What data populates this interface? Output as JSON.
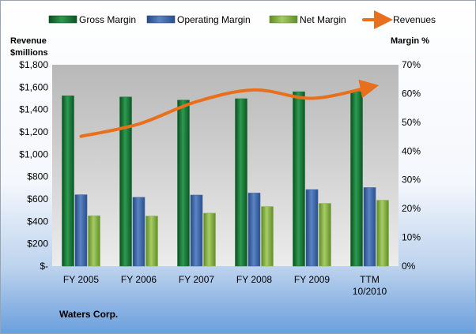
{
  "colors": {
    "gross": "#1f7a3c",
    "operating": "#3d66a8",
    "net": "#8ab446",
    "revenue": "#e8701c"
  },
  "chart_data": {
    "type": "bar",
    "company": "Waters Corp.",
    "categories": [
      [
        "FY 2005"
      ],
      [
        "FY 2006"
      ],
      [
        "FY 2007"
      ],
      [
        "FY 2008"
      ],
      [
        "FY 2009"
      ],
      [
        "TTM",
        "10/2010"
      ]
    ],
    "left_axis": {
      "title": [
        "Revenue",
        "$millions"
      ],
      "min": 0,
      "max": 1800,
      "step": 200,
      "tick_labels": [
        "$-",
        "$200",
        "$400",
        "$600",
        "$800",
        "$1,000",
        "$1,200",
        "$1,400",
        "$1,600",
        "$1,800"
      ]
    },
    "right_axis": {
      "title": "Margin %",
      "min": 0,
      "max": 70,
      "step": 10,
      "tick_labels": [
        "0%",
        "10%",
        "20%",
        "30%",
        "40%",
        "50%",
        "60%",
        "70%"
      ]
    },
    "series": [
      {
        "name": "Gross Margin",
        "kind": "bar",
        "axis": "right",
        "color_key": "gross",
        "values": [
          59.2,
          58.8,
          57.7,
          58.2,
          60.6,
          60.7
        ]
      },
      {
        "name": "Operating Margin",
        "kind": "bar",
        "axis": "right",
        "color_key": "operating",
        "values": [
          24.8,
          23.9,
          24.7,
          25.4,
          26.6,
          27.3
        ]
      },
      {
        "name": "Net Margin",
        "kind": "bar",
        "axis": "right",
        "color_key": "net",
        "values": [
          17.5,
          17.4,
          18.4,
          20.7,
          21.8,
          22.9
        ]
      },
      {
        "name": "Revenues",
        "kind": "line",
        "axis": "left",
        "color_key": "revenue",
        "values": [
          1160,
          1270,
          1470,
          1575,
          1500,
          1600
        ]
      }
    ],
    "legend_position": "top",
    "grid": false
  }
}
